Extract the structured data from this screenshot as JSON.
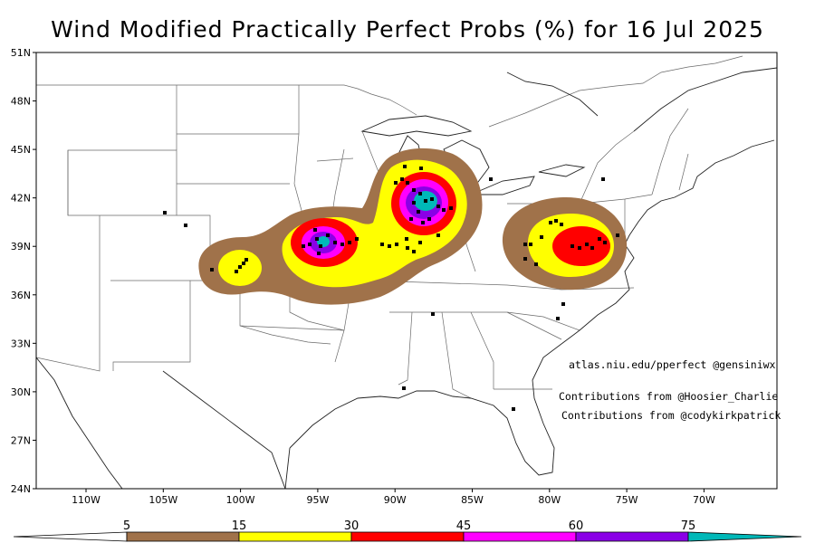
{
  "title": "Wind Modified Practically Perfect Probs (%) for 16 Jul 2025",
  "map": {
    "lat_ticks": [
      "51N",
      "48N",
      "45N",
      "42N",
      "39N",
      "36N",
      "33N",
      "30N",
      "27N",
      "24N"
    ],
    "lon_ticks": [
      "110W",
      "105W",
      "100W",
      "95W",
      "90W",
      "85W",
      "80W",
      "75W",
      "70W"
    ],
    "extent": {
      "lon": [
        -113,
        -73
      ],
      "lat": [
        24,
        51
      ]
    }
  },
  "credits": {
    "site": "atlas.niu.edu/pperfect @gensiniwx",
    "contrib1": "Contributions from @Hoosier_Charlie",
    "contrib2": "Contributions from @codykirkpatrick"
  },
  "colorbar": {
    "labels": [
      "5",
      "15",
      "30",
      "45",
      "60",
      "75"
    ],
    "colors": [
      "#a0724a",
      "#ffff00",
      "#ff0000",
      "#ff00ff",
      "#8a00e6",
      "#00b8b8"
    ]
  }
}
